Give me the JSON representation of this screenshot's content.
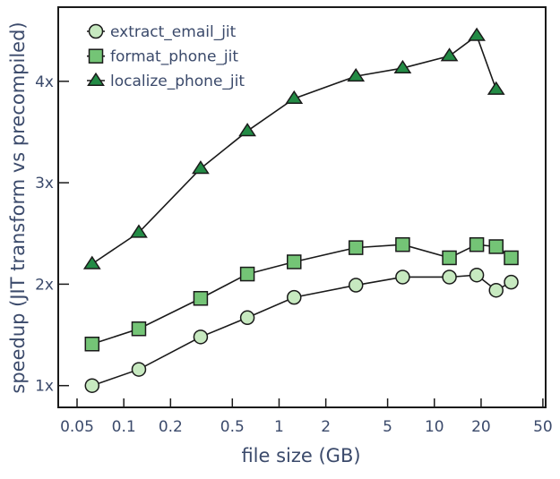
{
  "chart_data": {
    "type": "line",
    "title": "",
    "xlabel": "file size (GB)",
    "ylabel": "speedup (JIT transform vs precompiled)",
    "xscale": "log",
    "xlim": [
      0.042,
      52
    ],
    "ylim": [
      0.79,
      4.73
    ],
    "xticks": [
      0.05,
      0.1,
      0.2,
      0.5,
      1,
      2,
      5,
      10,
      20,
      50
    ],
    "xtick_labels": [
      "0.05",
      "0.1",
      "0.2",
      "0.5",
      "1",
      "2",
      "5",
      "10",
      "20",
      "50"
    ],
    "yticks": [
      1,
      2,
      3,
      4
    ],
    "ytick_labels": [
      "1x",
      "2x",
      "3x",
      "4x"
    ],
    "grid": false,
    "legend_position": "upper left",
    "series": [
      {
        "name": "extract_email_jit",
        "marker": "circle",
        "color": "#c7e9c0",
        "x": [
          0.0625,
          0.125,
          0.3125,
          0.625,
          1.25,
          3.125,
          6.25,
          12.5,
          18.75,
          25,
          31.25
        ],
        "values": [
          1.0,
          1.16,
          1.48,
          1.67,
          1.87,
          1.99,
          2.07,
          2.07,
          2.09,
          1.94,
          2.02
        ]
      },
      {
        "name": "format_phone_jit",
        "marker": "square",
        "color": "#74c476",
        "x": [
          0.0625,
          0.125,
          0.3125,
          0.625,
          1.25,
          3.125,
          6.25,
          12.5,
          18.75,
          25,
          31.25
        ],
        "values": [
          1.41,
          1.56,
          1.86,
          2.1,
          2.22,
          2.36,
          2.39,
          2.26,
          2.39,
          2.37,
          2.26
        ]
      },
      {
        "name": "localize_phone_jit",
        "marker": "triangle",
        "color": "#238b45",
        "x": [
          0.0625,
          0.125,
          0.3125,
          0.625,
          1.25,
          3.125,
          6.25,
          12.5,
          18.75,
          25
        ],
        "values": [
          2.2,
          2.51,
          3.14,
          3.51,
          3.83,
          4.05,
          4.13,
          4.25,
          4.45,
          3.92
        ]
      }
    ]
  },
  "style": {
    "text_color": "#3b4a6b",
    "axis_color": "#1a1a1a",
    "line_color": "#1a1a1a"
  }
}
